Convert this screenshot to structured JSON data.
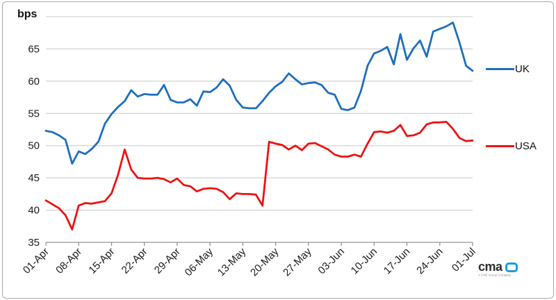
{
  "chart_data": {
    "type": "line",
    "title": "",
    "xlabel": "",
    "ylabel": "bps",
    "ylim": [
      35,
      70
    ],
    "yticks": [
      35,
      40,
      45,
      50,
      55,
      60,
      65
    ],
    "grid": true,
    "legend_position": "right",
    "x_tick_labels": [
      "01-Apr",
      "08-Apr",
      "15-Apr",
      "22-Apr",
      "29-Apr",
      "06-May",
      "13-May",
      "20-May",
      "27-May",
      "03-Jun",
      "10-Jun",
      "17-Jun",
      "24-Jun",
      "01-Jul"
    ],
    "points_per_tick": 5,
    "series": [
      {
        "name": "UK",
        "color": "#1d6ebf",
        "values": [
          52.3,
          52.1,
          51.6,
          50.9,
          47.2,
          49.1,
          48.7,
          49.5,
          50.6,
          53.4,
          54.9,
          56.0,
          56.9,
          58.6,
          57.6,
          58.0,
          57.9,
          57.9,
          59.4,
          57.1,
          56.7,
          56.7,
          57.2,
          56.2,
          58.4,
          58.3,
          59.0,
          60.3,
          59.3,
          57.1,
          55.9,
          55.8,
          55.8,
          56.9,
          58.2,
          59.2,
          59.9,
          61.2,
          60.3,
          59.5,
          59.7,
          59.8,
          59.4,
          58.2,
          57.9,
          55.7,
          55.5,
          55.9,
          58.5,
          62.4,
          64.3,
          64.7,
          65.3,
          62.6,
          67.3,
          63.3,
          65.1,
          66.3,
          63.8,
          67.7,
          68.1,
          68.5,
          69.1,
          66.0,
          62.4,
          61.6
        ]
      },
      {
        "name": "USA",
        "color": "#ee1111",
        "values": [
          41.5,
          40.9,
          40.3,
          39.2,
          37.0,
          40.7,
          41.1,
          41.0,
          41.2,
          41.4,
          42.6,
          45.5,
          49.4,
          46.3,
          45.0,
          44.9,
          44.9,
          45.0,
          44.8,
          44.3,
          44.9,
          43.9,
          43.7,
          42.9,
          43.3,
          43.4,
          43.3,
          42.8,
          41.7,
          42.6,
          42.5,
          42.5,
          42.4,
          40.7,
          50.6,
          50.3,
          50.1,
          49.4,
          50.0,
          49.3,
          50.3,
          50.4,
          49.9,
          49.4,
          48.6,
          48.3,
          48.3,
          48.6,
          48.3,
          50.3,
          52.1,
          52.2,
          52.0,
          52.3,
          53.2,
          51.5,
          51.6,
          52.0,
          53.3,
          53.6,
          53.6,
          53.7,
          52.6,
          51.2,
          50.7,
          50.8
        ]
      }
    ]
  },
  "axis_colors": {
    "gridline": "#c8c8c8",
    "axis_line": "#a6a6a6",
    "tick": "#8c8c8c",
    "label": "#1a1a1a"
  },
  "logo": {
    "text": "cma",
    "subtext": "A CME Group Company",
    "mark_color": "#1e9cd7"
  }
}
